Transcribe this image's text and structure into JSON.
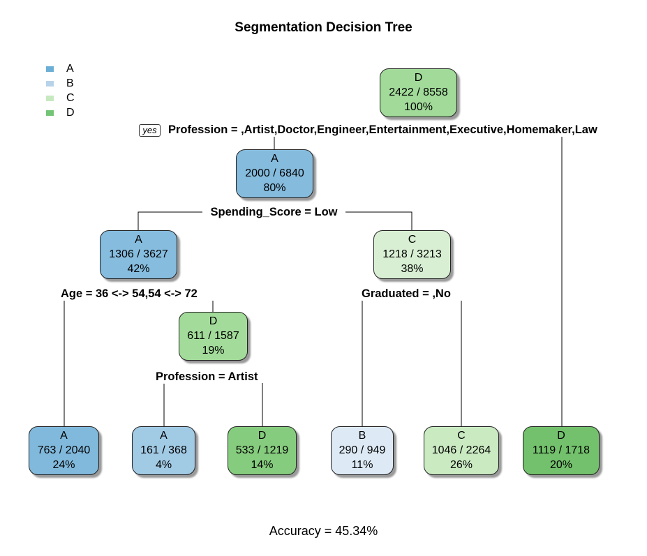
{
  "title": "Segmentation Decision Tree",
  "footer": "Accuracy = 45.34%",
  "yes_label": "yes",
  "legend": [
    {
      "label": "A",
      "color": "#6BAED6"
    },
    {
      "label": "B",
      "color": "#B7D3EA"
    },
    {
      "label": "C",
      "color": "#C7E9C0"
    },
    {
      "label": "D",
      "color": "#74C476"
    }
  ],
  "splits": {
    "s0": "Profession = ,Artist,Doctor,Engineer,Entertainment,Executive,Homemaker,Law",
    "s1": "Spending_Score = Low",
    "s2": "Age = 36 <-> 54,54 <-> 72",
    "s3": "Graduated = ,No",
    "s4": "Profession = Artist"
  },
  "nodes": {
    "n0": {
      "class": "D",
      "count": "2422 / 8558",
      "pct": "100%",
      "color": "#A1DA99"
    },
    "n1": {
      "class": "A",
      "count": "2000 / 6840",
      "pct": "80%",
      "color": "#85BBDD"
    },
    "n2": {
      "class": "A",
      "count": "1306 / 3627",
      "pct": "42%",
      "color": "#86BCDE"
    },
    "n3": {
      "class": "C",
      "count": "1218 / 3213",
      "pct": "38%",
      "color": "#D8EFD3"
    },
    "n4": {
      "class": "D",
      "count": "611 / 1587",
      "pct": "19%",
      "color": "#A3DB9A"
    },
    "l1": {
      "class": "A",
      "count": "763 / 2040",
      "pct": "24%",
      "color": "#81B9DC"
    },
    "l2": {
      "class": "A",
      "count": "161 / 368",
      "pct": "4%",
      "color": "#A1CAE5"
    },
    "l3": {
      "class": "D",
      "count": "533 / 1219",
      "pct": "14%",
      "color": "#86CC7E"
    },
    "l4": {
      "class": "B",
      "count": "290 / 949",
      "pct": "11%",
      "color": "#DDEAF6"
    },
    "l5": {
      "class": "C",
      "count": "1046 / 2264",
      "pct": "26%",
      "color": "#CAEAC2"
    },
    "l6": {
      "class": "D",
      "count": "1119 / 1718",
      "pct": "20%",
      "color": "#73C16C"
    }
  }
}
